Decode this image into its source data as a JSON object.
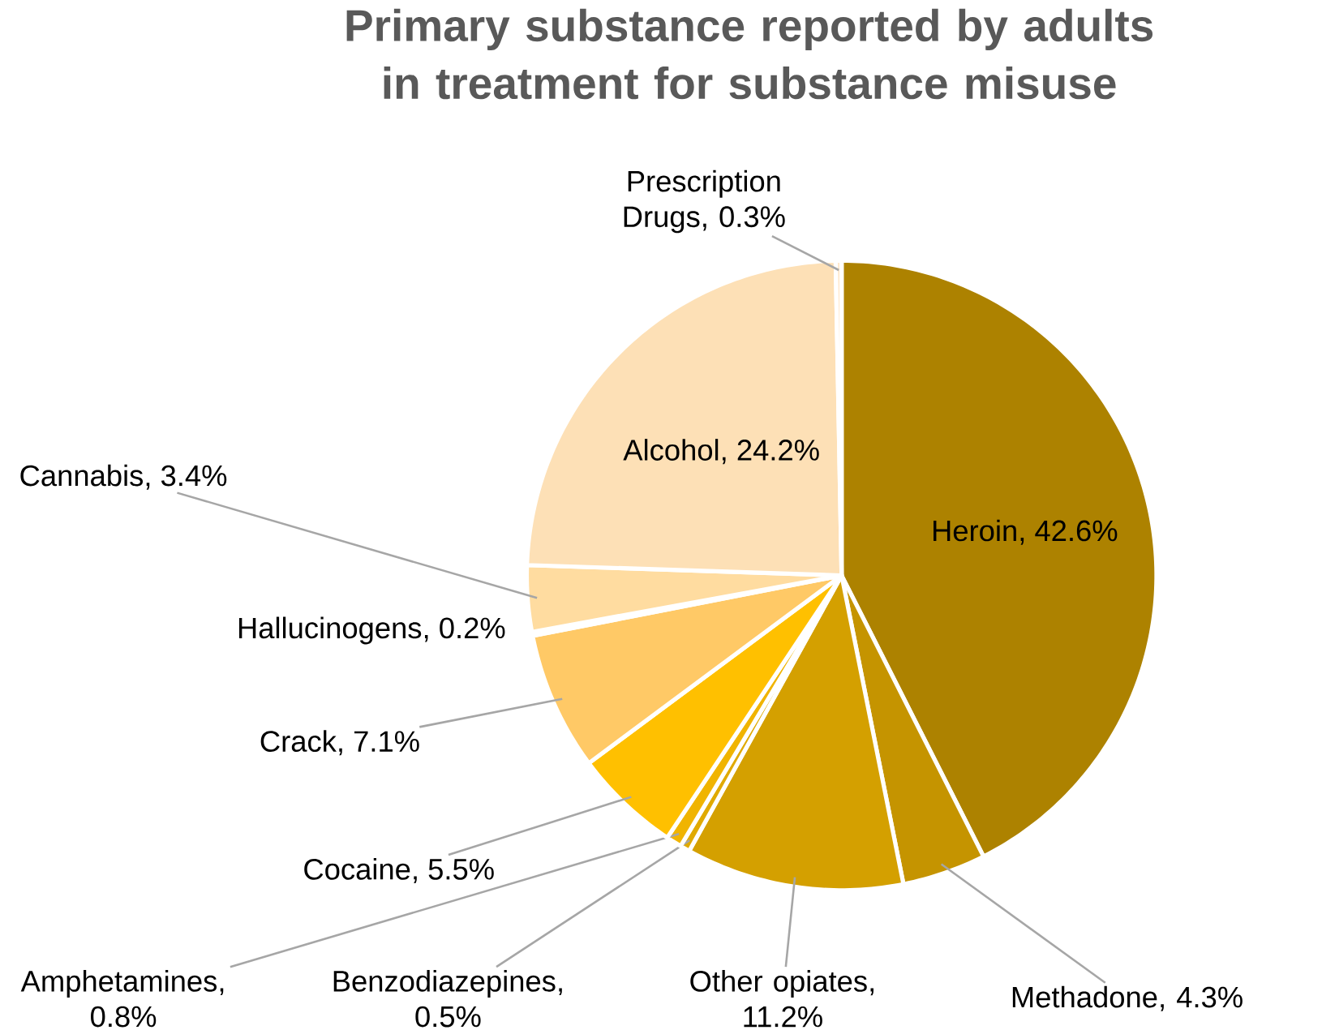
{
  "chart_data": {
    "type": "pie",
    "title": "Primary substance reported by adults in treatment for substance misuse",
    "categories": [
      "Heroin",
      "Methadone",
      "Other opiates",
      "Benzodiazepines",
      "Amphetamines",
      "Cocaine",
      "Crack",
      "Hallucinogens",
      "Cannabis",
      "Alcohol",
      "Prescription Drugs"
    ],
    "values": [
      42.6,
      4.3,
      11.2,
      0.5,
      0.8,
      5.5,
      7.1,
      0.2,
      3.4,
      24.2,
      0.3
    ],
    "value_labels": [
      ", 42.6%",
      ", 4.3%",
      ", 11.2%",
      ", 0.5%",
      ", 0.8%",
      ", 5.5%",
      ", 7.1%",
      ", 0.2%",
      ", 3.4%",
      ", 24.2%",
      ", 0.3%"
    ],
    "colors": [
      "#ad8200",
      "#c59400",
      "#d4a000",
      "#e0aa00",
      "#f0b400",
      "#ffc000",
      "#ffc966",
      "#ffd27f",
      "#ffdca0",
      "#fde0b6",
      "#fee8cc"
    ]
  }
}
